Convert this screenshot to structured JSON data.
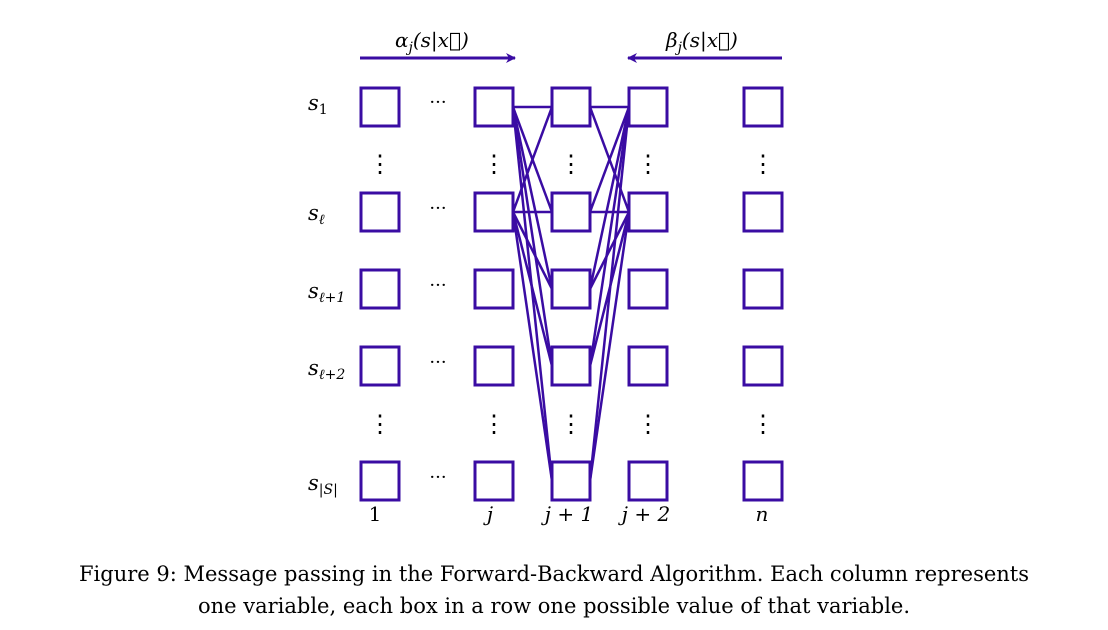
{
  "diagram": {
    "accent_color": "#3a0ca3",
    "forward_label": {
      "main": "α",
      "sub": "j",
      "args": "(s|x⃗)"
    },
    "backward_label": {
      "main": "β",
      "sub": "j",
      "args": "(s|x⃗)"
    },
    "row_labels": [
      {
        "main": "s",
        "sub": "1"
      },
      {
        "main": "s",
        "sub": "ℓ"
      },
      {
        "main": "s",
        "sub": "ℓ+1"
      },
      {
        "main": "s",
        "sub": "ℓ+2"
      },
      {
        "main": "s",
        "sub": "|S|"
      }
    ],
    "column_labels": [
      "1",
      "j",
      "j + 1",
      "j + 2",
      "n"
    ],
    "ellipsis_horizontal": "···",
    "ellipsis_vertical": "⋮"
  },
  "caption": {
    "line1": "Figure 9: Message passing in the Forward-Backward Algorithm. Each column represents",
    "line2": "one variable, each box in a row one possible value of that variable."
  }
}
